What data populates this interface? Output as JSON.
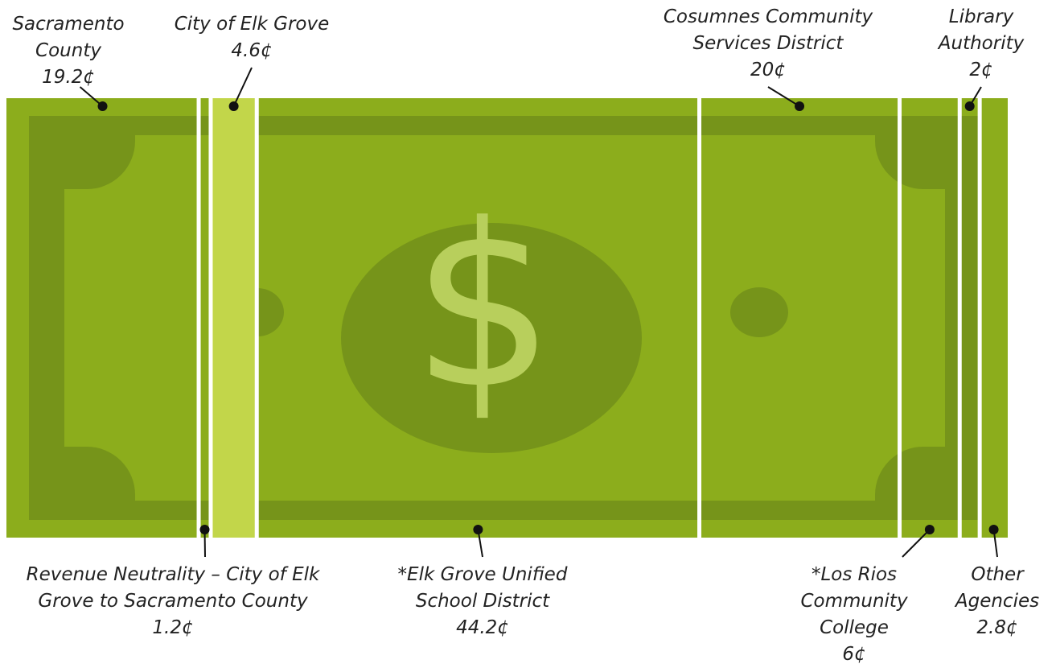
{
  "chart_data": {
    "type": "dollar-split",
    "symbol": "$",
    "categories": [
      "Sacramento County",
      "Revenue Neutrality – City of Elk Grove to Sacramento County",
      "City of Elk Grove",
      "*Elk Grove Unified School District",
      "Cosumnes Community Services District",
      "*Los Rios Community College",
      "Library Authority",
      "Other Agencies"
    ],
    "values": [
      19.2,
      1.2,
      4.6,
      44.2,
      20,
      6,
      2,
      2.8
    ],
    "value_labels": [
      "19.2¢",
      "1.2¢",
      "4.6¢",
      "44.2¢",
      "20¢",
      "6¢",
      "2¢",
      "2.8¢"
    ],
    "colors": [
      "none",
      "none",
      "#c2d64a",
      "none",
      "none",
      "none",
      "none",
      "none"
    ]
  }
}
